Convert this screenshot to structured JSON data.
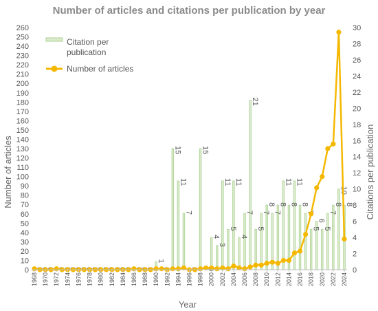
{
  "chart_data": {
    "type": "bar",
    "title": "Number of articles and citations per publication by year",
    "xlabel": "Year",
    "ylabel": "Number of articles",
    "y2label": "Citations per publication",
    "ylim": [
      0,
      260
    ],
    "y2lim": [
      0,
      30
    ],
    "legend_position": "top-left",
    "categories": [
      "1968",
      "1969",
      "1970",
      "1971",
      "1972",
      "1973",
      "1974",
      "1975",
      "1976",
      "1977",
      "1978",
      "1979",
      "1980",
      "1981",
      "1982",
      "1983",
      "1984",
      "1985",
      "1986",
      "1987",
      "1988",
      "1989",
      "1990",
      "1991",
      "1992",
      "1993",
      "1994",
      "1995",
      "1996",
      "1997",
      "1998",
      "1999",
      "2000",
      "2001",
      "2002",
      "2003",
      "2004",
      "2005",
      "2006",
      "2007",
      "2008",
      "2009",
      "2010",
      "2011",
      "2012",
      "2013",
      "2014",
      "2015",
      "2016",
      "2017",
      "2018",
      "2019",
      "2020",
      "2021",
      "2022",
      "2023",
      "2024"
    ],
    "x_tick_labels": [
      "1968",
      "1970",
      "1972",
      "1974",
      "1976",
      "1978",
      "1980",
      "1982",
      "1984",
      "1986",
      "1988",
      "1990",
      "1992",
      "1994",
      "1996",
      "1998",
      "2000",
      "2002",
      "2004",
      "2006",
      "2008",
      "2010",
      "2012",
      "2014",
      "2016",
      "2018",
      "2020",
      "2022",
      "2024"
    ],
    "series": [
      {
        "name": "Citation per publication",
        "axis": "right",
        "kind": "bar",
        "color": "#a9d18e",
        "values": [
          0,
          0,
          0,
          0,
          0,
          0,
          0,
          0,
          0,
          0,
          0,
          0,
          0,
          0,
          0,
          0,
          0,
          0,
          0,
          0,
          0,
          0,
          1,
          0,
          0,
          15,
          11,
          7,
          0,
          0,
          15,
          0,
          4,
          3,
          11,
          5,
          11,
          4,
          7,
          21,
          5,
          7,
          8,
          7,
          8,
          11,
          8,
          11,
          8,
          7,
          5,
          6,
          5,
          7,
          8,
          10,
          8
        ],
        "labels": [
          "0",
          "0",
          "0",
          "0",
          "0",
          "0",
          "0",
          "0",
          "0",
          "0",
          "0",
          "0",
          "0",
          "0",
          "0",
          "0",
          "0",
          "0",
          "0",
          "0",
          "0",
          "0",
          "1",
          "0",
          "0",
          "15",
          "11",
          "7",
          "0",
          "0",
          "15",
          "0",
          "4",
          "3",
          "11",
          "5",
          "11",
          "4",
          "7",
          "21",
          "5",
          "7",
          "8",
          "7",
          "8",
          "11",
          "8",
          "11",
          "8",
          "7",
          "5",
          "6",
          "5",
          "7",
          "8",
          "10",
          "8"
        ]
      },
      {
        "name": "Number of articles",
        "axis": "left",
        "kind": "line",
        "color": "#f5b800",
        "values": [
          1,
          0,
          0,
          0,
          1,
          0,
          0,
          0,
          0,
          0,
          0,
          0,
          0,
          0,
          0,
          0,
          0,
          0,
          1,
          0,
          0,
          0,
          1,
          1,
          0,
          1,
          1,
          2,
          0,
          0,
          1,
          2,
          2,
          1,
          2,
          1,
          4,
          2,
          1,
          3,
          5,
          5,
          7,
          8,
          7,
          10,
          10,
          18,
          20,
          38,
          60,
          88,
          100,
          130,
          135,
          255,
          33
        ]
      }
    ]
  }
}
